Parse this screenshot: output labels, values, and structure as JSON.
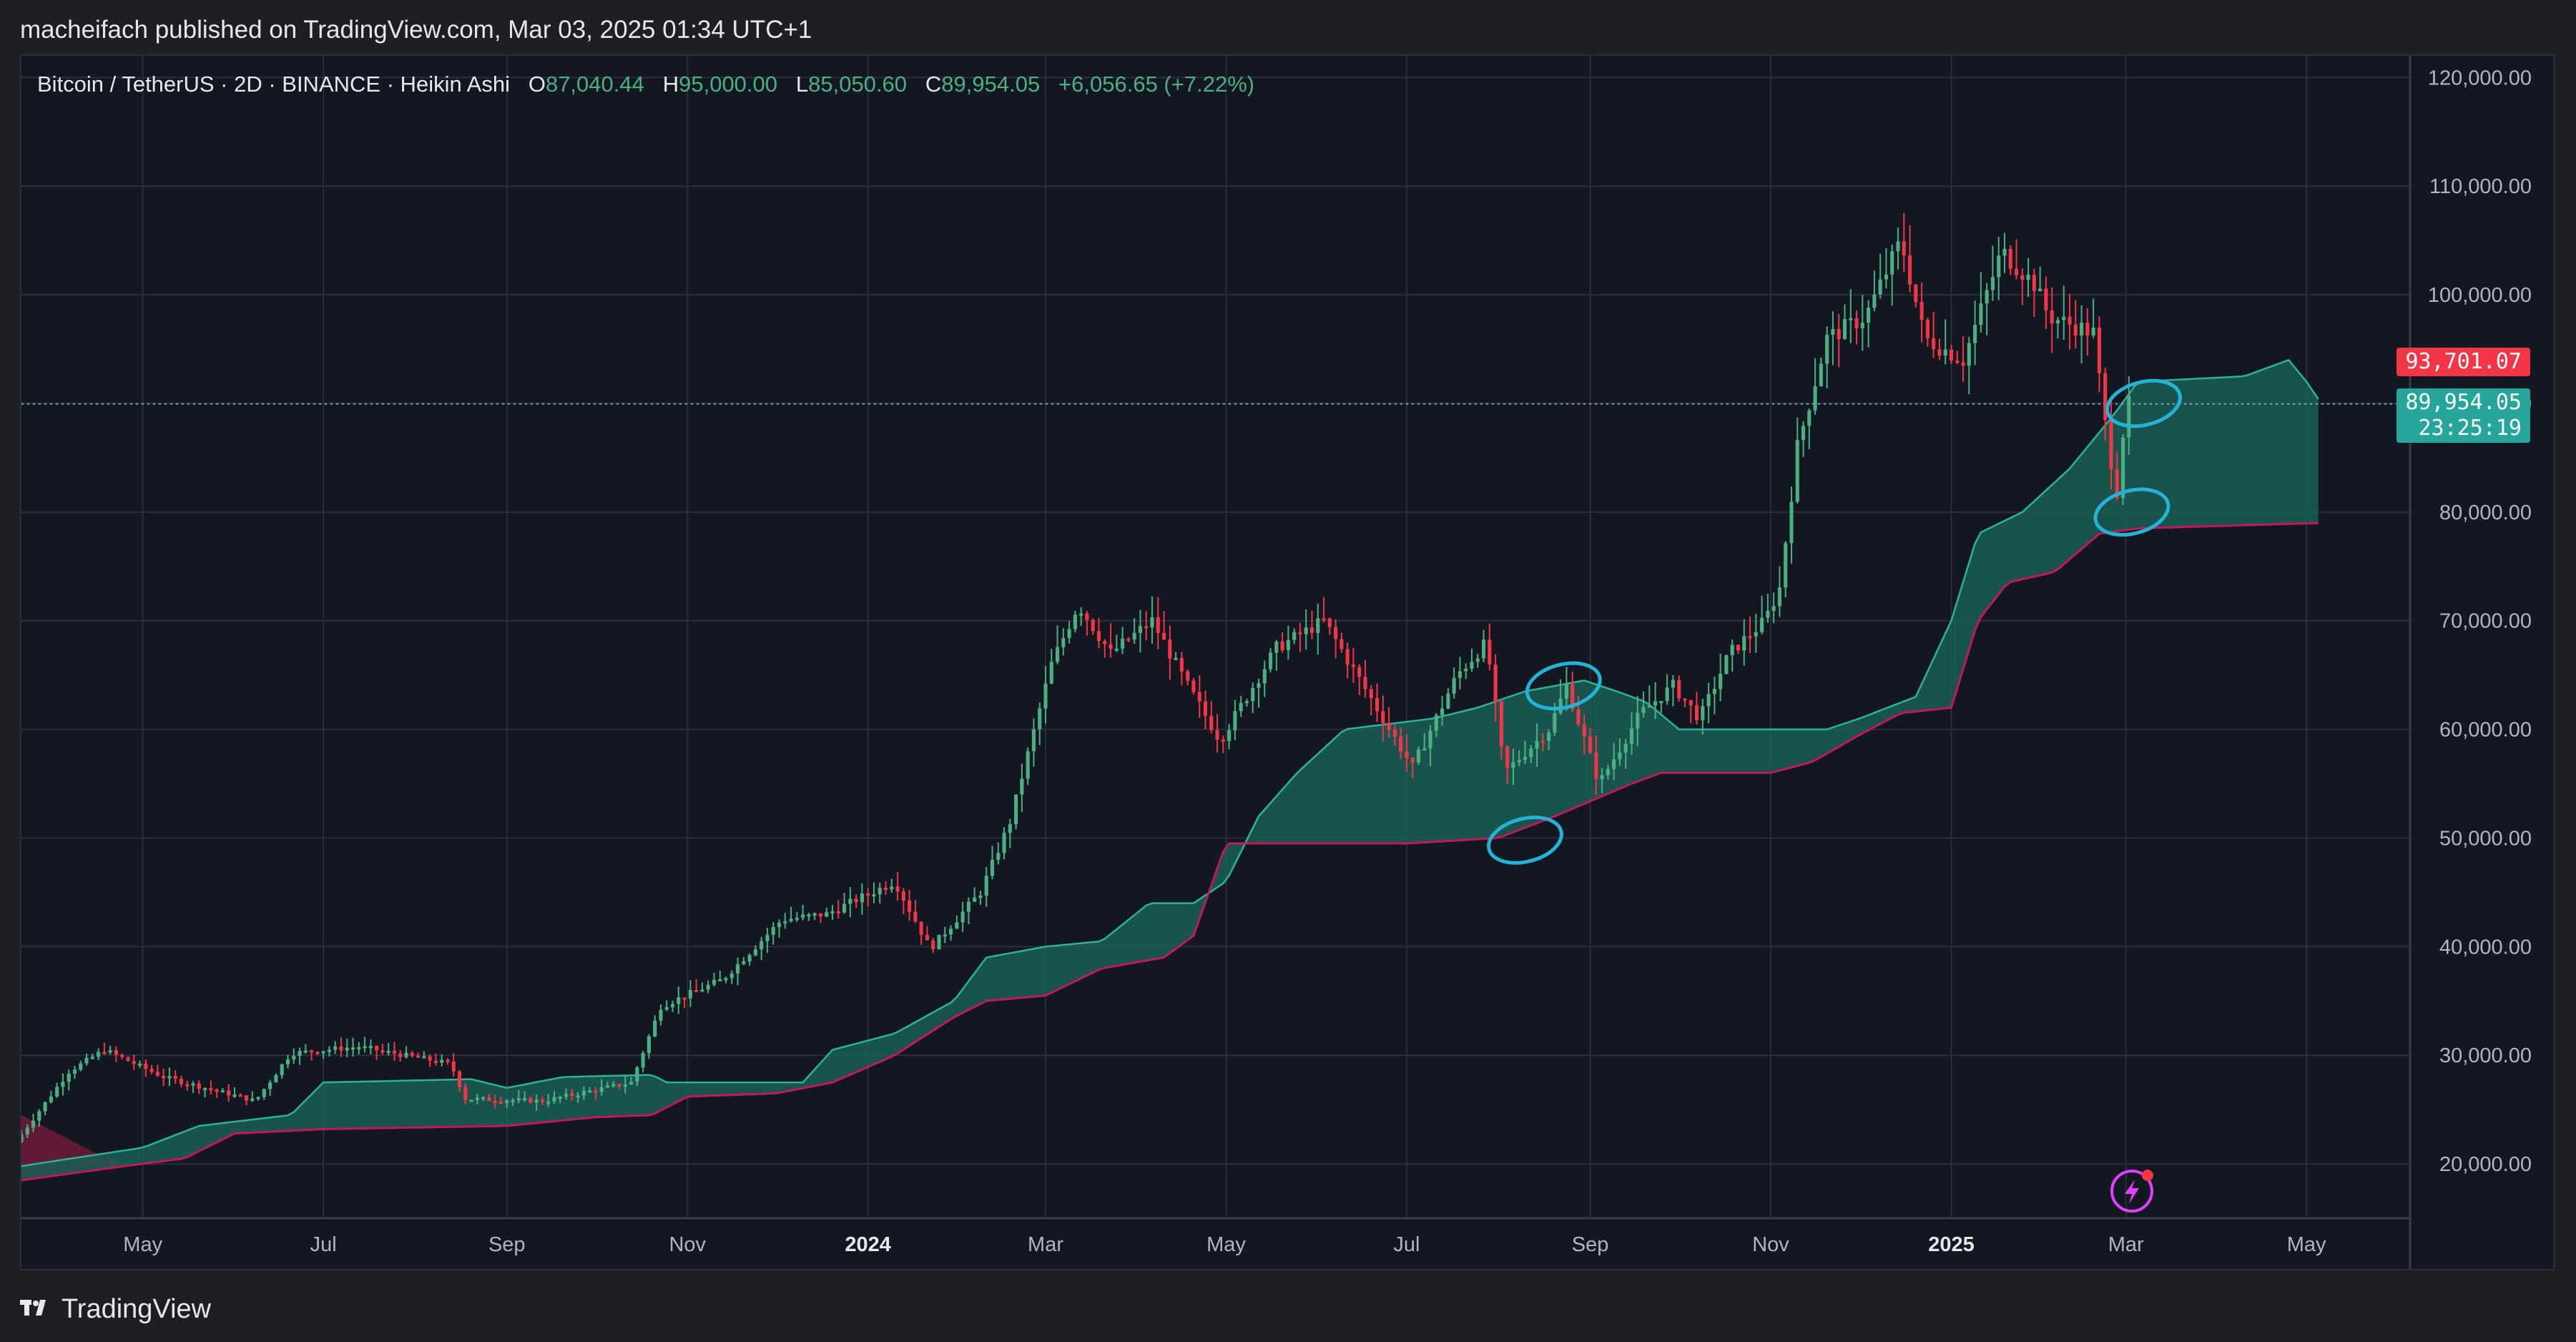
{
  "header": {
    "publisher_line": "macheifach published on TradingView.com, Mar 03, 2025 01:34 UTC+1"
  },
  "legend": {
    "symbol": "Bitcoin / TetherUS · 2D · BINANCE · Heikin Ashi",
    "open_key": "O",
    "open": "87,040.44",
    "high_key": "H",
    "high": "95,000.00",
    "low_key": "L",
    "low": "85,050.60",
    "close_key": "C",
    "close": "89,954.05",
    "change": "+6,056.65 (+7.22%)"
  },
  "price_tags": {
    "red_value": "93,701.07",
    "green_value": "89,954.05",
    "green_timer": "23:25:19"
  },
  "footer": {
    "brand": "TradingView"
  },
  "colors": {
    "background": "#131722",
    "grid": "#2a2e39",
    "up": "#4caf82",
    "down": "#f23645",
    "cloud_bull": "#1b5e55",
    "cloud_bear": "#6b1a3b",
    "annotation": "#22b3d6",
    "accent": "#e040fb"
  },
  "chart_data": {
    "type": "candlestick",
    "title": "Bitcoin / TetherUS · 2D · BINANCE · Heikin Ashi",
    "ylim": [
      15000,
      122000
    ],
    "y_ticks": [
      "20,000.00",
      "30,000.00",
      "40,000.00",
      "50,000.00",
      "60,000.00",
      "70,000.00",
      "80,000.00",
      "90,000.00",
      "100,000.00",
      "110,000.00",
      "120,000.00"
    ],
    "y_tick_values": [
      20000,
      30000,
      40000,
      50000,
      60000,
      70000,
      80000,
      90000,
      100000,
      110000,
      120000
    ],
    "x_range": [
      "2023-03-21",
      "2025-06-05"
    ],
    "x_ticks": [
      {
        "label": "May",
        "date": "2023-05-01",
        "year": false
      },
      {
        "label": "Jul",
        "date": "2023-07-01",
        "year": false
      },
      {
        "label": "Sep",
        "date": "2023-09-01",
        "year": false
      },
      {
        "label": "Nov",
        "date": "2023-11-01",
        "year": false
      },
      {
        "label": "2024",
        "date": "2024-01-01",
        "year": true
      },
      {
        "label": "Mar",
        "date": "2024-03-01",
        "year": false
      },
      {
        "label": "May",
        "date": "2024-05-01",
        "year": false
      },
      {
        "label": "Jul",
        "date": "2024-07-01",
        "year": false
      },
      {
        "label": "Sep",
        "date": "2024-09-01",
        "year": false
      },
      {
        "label": "Nov",
        "date": "2024-11-01",
        "year": false
      },
      {
        "label": "2025",
        "date": "2025-01-01",
        "year": true
      },
      {
        "label": "Mar",
        "date": "2025-03-01",
        "year": false
      },
      {
        "label": "May",
        "date": "2025-05-01",
        "year": false
      }
    ],
    "current_price_line": 89954.05,
    "price_keypoints": [
      [
        "2023-03-21",
        22000
      ],
      [
        "2023-04-08",
        28500
      ],
      [
        "2023-04-20",
        30500
      ],
      [
        "2023-05-10",
        28000
      ],
      [
        "2023-06-10",
        25800
      ],
      [
        "2023-06-22",
        30200
      ],
      [
        "2023-07-15",
        30800
      ],
      [
        "2023-08-15",
        29200
      ],
      [
        "2023-08-20",
        26000
      ],
      [
        "2023-09-15",
        25800
      ],
      [
        "2023-10-15",
        27500
      ],
      [
        "2023-10-25",
        34500
      ],
      [
        "2023-11-15",
        37000
      ],
      [
        "2023-12-05",
        42500
      ],
      [
        "2023-12-20",
        43000
      ],
      [
        "2024-01-12",
        46000
      ],
      [
        "2024-01-24",
        39800
      ],
      [
        "2024-02-10",
        45000
      ],
      [
        "2024-02-20",
        51500
      ],
      [
        "2024-03-05",
        66000
      ],
      [
        "2024-03-14",
        71500
      ],
      [
        "2024-03-25",
        67000
      ],
      [
        "2024-04-08",
        70000
      ],
      [
        "2024-04-20",
        64000
      ],
      [
        "2024-05-01",
        59000
      ],
      [
        "2024-05-20",
        67500
      ],
      [
        "2024-06-05",
        70000
      ],
      [
        "2024-06-25",
        61000
      ],
      [
        "2024-07-05",
        56500
      ],
      [
        "2024-07-20",
        65000
      ],
      [
        "2024-07-30",
        68000
      ],
      [
        "2024-08-05",
        56000
      ],
      [
        "2024-08-20",
        60000
      ],
      [
        "2024-08-26",
        64000
      ],
      [
        "2024-09-06",
        55000
      ],
      [
        "2024-09-20",
        61500
      ],
      [
        "2024-10-01",
        64000
      ],
      [
        "2024-10-10",
        61000
      ],
      [
        "2024-10-20",
        67000
      ],
      [
        "2024-11-01",
        70000
      ],
      [
        "2024-11-06",
        73000
      ],
      [
        "2024-11-12",
        86000
      ],
      [
        "2024-11-22",
        96000
      ],
      [
        "2024-12-05",
        98000
      ],
      [
        "2024-12-17",
        105000
      ],
      [
        "2024-12-25",
        96000
      ],
      [
        "2025-01-07",
        94000
      ],
      [
        "2025-01-20",
        104000
      ],
      [
        "2025-01-31",
        101000
      ],
      [
        "2025-02-05",
        98000
      ],
      [
        "2025-02-20",
        96500
      ],
      [
        "2025-02-25",
        86000
      ],
      [
        "2025-02-28",
        82000
      ],
      [
        "2025-03-03",
        89954
      ]
    ],
    "cloud_top": [
      [
        "2023-03-21",
        19800
      ],
      [
        "2023-05-01",
        21500
      ],
      [
        "2023-05-20",
        23500
      ],
      [
        "2023-06-20",
        24500
      ],
      [
        "2023-07-01",
        27500
      ],
      [
        "2023-08-20",
        27800
      ],
      [
        "2023-09-01",
        27000
      ],
      [
        "2023-09-20",
        28000
      ],
      [
        "2023-10-20",
        28200
      ],
      [
        "2023-10-25",
        27500
      ],
      [
        "2023-12-10",
        27500
      ],
      [
        "2023-12-20",
        30500
      ],
      [
        "2024-01-10",
        32000
      ],
      [
        "2024-01-30",
        35000
      ],
      [
        "2024-02-10",
        39000
      ],
      [
        "2024-03-01",
        40000
      ],
      [
        "2024-03-20",
        40500
      ],
      [
        "2024-04-05",
        44000
      ],
      [
        "2024-04-20",
        44000
      ],
      [
        "2024-05-01",
        46000
      ],
      [
        "2024-05-12",
        52000
      ],
      [
        "2024-05-25",
        56000
      ],
      [
        "2024-06-10",
        60000
      ],
      [
        "2024-07-10",
        61000
      ],
      [
        "2024-07-25",
        62000
      ],
      [
        "2024-08-10",
        63500
      ],
      [
        "2024-08-30",
        64500
      ],
      [
        "2024-09-10",
        63500
      ],
      [
        "2024-09-20",
        62500
      ],
      [
        "2024-10-01",
        60000
      ],
      [
        "2024-11-20",
        60000
      ],
      [
        "2024-12-01",
        61000
      ],
      [
        "2024-12-20",
        63000
      ],
      [
        "2025-01-01",
        70000
      ],
      [
        "2025-01-10",
        78000
      ],
      [
        "2025-01-25",
        80000
      ],
      [
        "2025-02-10",
        84000
      ],
      [
        "2025-02-25",
        89000
      ],
      [
        "2025-03-05",
        92000
      ],
      [
        "2025-04-10",
        92500
      ],
      [
        "2025-04-25",
        94000
      ],
      [
        "2025-05-01",
        92000
      ],
      [
        "2025-05-06",
        90000
      ]
    ],
    "cloud_bottom": [
      [
        "2023-03-21",
        18500
      ],
      [
        "2023-04-25",
        19800
      ],
      [
        "2023-05-15",
        20500
      ],
      [
        "2023-06-01",
        22800
      ],
      [
        "2023-07-01",
        23200
      ],
      [
        "2023-09-01",
        23500
      ],
      [
        "2023-10-01",
        24300
      ],
      [
        "2023-10-20",
        24500
      ],
      [
        "2023-11-01",
        26200
      ],
      [
        "2023-12-01",
        26500
      ],
      [
        "2023-12-20",
        27500
      ],
      [
        "2024-01-10",
        30000
      ],
      [
        "2024-01-30",
        33500
      ],
      [
        "2024-02-10",
        35000
      ],
      [
        "2024-03-01",
        35500
      ],
      [
        "2024-03-20",
        38000
      ],
      [
        "2024-04-10",
        39000
      ],
      [
        "2024-04-20",
        41000
      ],
      [
        "2024-05-01",
        49500
      ],
      [
        "2024-06-01",
        49500
      ],
      [
        "2024-07-01",
        49500
      ],
      [
        "2024-08-01",
        50000
      ],
      [
        "2024-08-20",
        52000
      ],
      [
        "2024-09-15",
        55000
      ],
      [
        "2024-09-25",
        56000
      ],
      [
        "2024-11-01",
        56000
      ],
      [
        "2024-11-15",
        57000
      ],
      [
        "2024-12-01",
        59500
      ],
      [
        "2024-12-15",
        61500
      ],
      [
        "2025-01-01",
        62000
      ],
      [
        "2025-01-10",
        70000
      ],
      [
        "2025-01-20",
        73500
      ],
      [
        "2025-02-05",
        74500
      ],
      [
        "2025-02-20",
        78000
      ],
      [
        "2025-03-05",
        78500
      ],
      [
        "2025-05-06",
        79000
      ]
    ],
    "annotation_circles": [
      {
        "date": "2024-08-10",
        "price": 49800
      },
      {
        "date": "2024-08-23",
        "price": 64000
      },
      {
        "date": "2025-03-03",
        "price": 80000
      },
      {
        "date": "2025-03-07",
        "price": 90000
      }
    ]
  }
}
